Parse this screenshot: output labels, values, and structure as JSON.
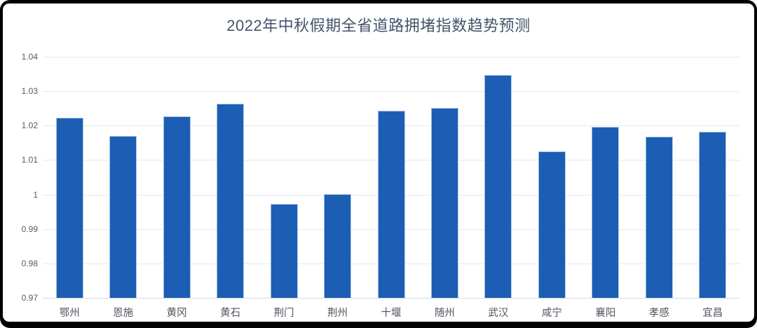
{
  "frame": {
    "border_color": "#000000",
    "background": "#ffffff"
  },
  "chart_data": {
    "type": "bar",
    "title": "2022年中秋假期全省道路拥堵指数趋势预测",
    "categories": [
      "鄂州",
      "恩施",
      "黄冈",
      "黄石",
      "荆门",
      "荆州",
      "十堰",
      "随州",
      "武汉",
      "咸宁",
      "襄阳",
      "孝感",
      "宜昌"
    ],
    "values": [
      1.0222,
      1.0171,
      1.0228,
      1.0263,
      0.9973,
      1.0001,
      1.0243,
      1.0251,
      1.0347,
      1.0125,
      1.0196,
      1.0168,
      1.0183
    ],
    "xlabel": "",
    "ylabel": "",
    "ylim": [
      0.97,
      1.04
    ],
    "ytick_step": 0.01,
    "yticks": [
      0.97,
      0.98,
      0.99,
      1,
      1.01,
      1.02,
      1.03,
      1.04
    ],
    "ytick_labels": [
      "0.97",
      "0.98",
      "0.99",
      "1",
      "1.01",
      "1.02",
      "1.03",
      "1.04"
    ],
    "grid": true,
    "legend_position": "none",
    "bar_color": "#1b5eb4",
    "bar_border_color": "#a6c4e6",
    "gridline_color": "#e4e9ef",
    "axis_line_color": "#d5dae1",
    "title_color": "#44546A",
    "tick_label_color": "#545b66",
    "category_label_color": "#4f555e"
  }
}
